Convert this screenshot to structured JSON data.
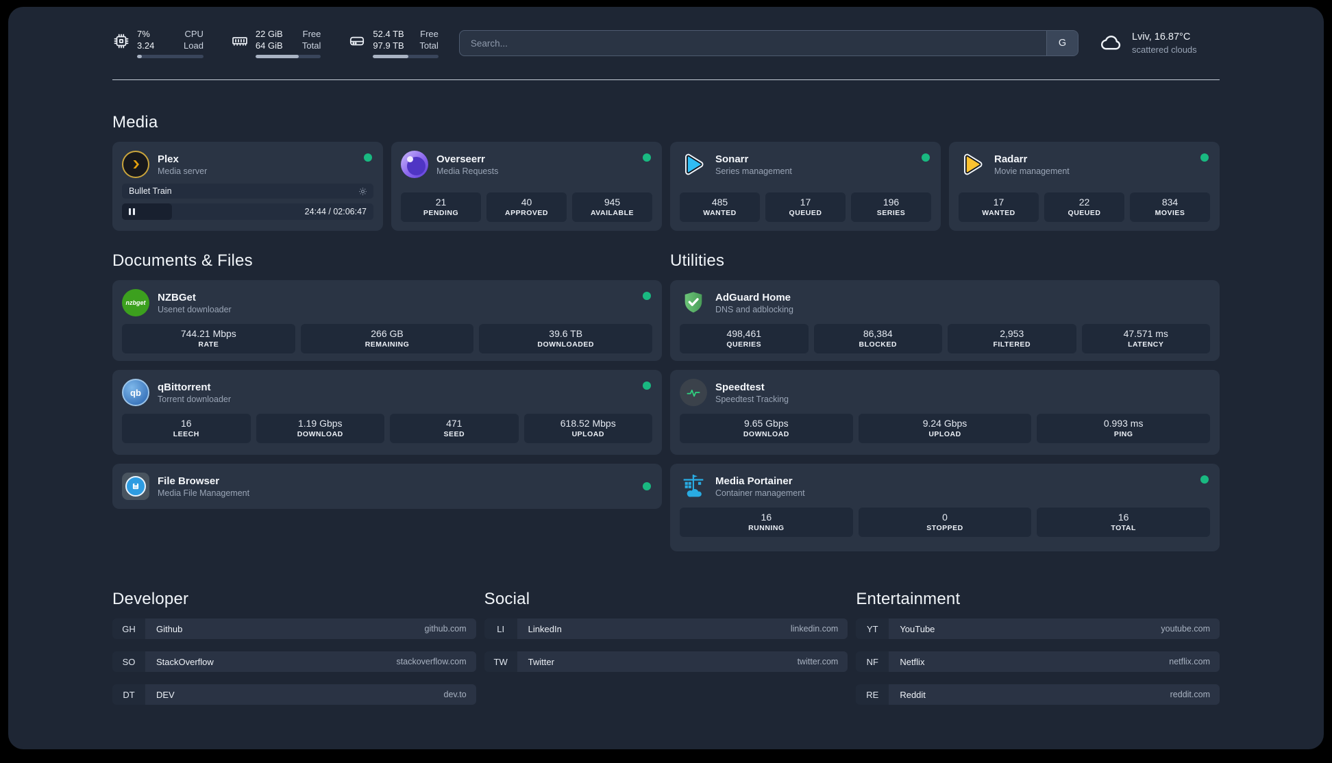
{
  "colors": {
    "status_green": "#19b981",
    "plex_amber": "#e5a00d",
    "sonarr_blue": "#30bdf4",
    "radarr_amber": "#fcc230",
    "nzbget_green": "#3ca01e",
    "qbittorrent_blue": "#3c77bd",
    "adguard_green": "#5bb36a",
    "speedtest_green": "#2fd380",
    "portainer_blue": "#29abe2",
    "overseerr_purple": "#8b67ee"
  },
  "icons": {
    "topbar": [
      "cpu-chip-icon",
      "memory-icon",
      "disk-icon",
      "cloud-icon"
    ],
    "player": [
      "gear-icon",
      "pause-icon"
    ],
    "status": "status-dot"
  },
  "topbar": {
    "cpu": {
      "values": [
        "7%",
        "3.24"
      ],
      "labels": [
        "CPU",
        "Load"
      ],
      "progress": 7
    },
    "memory": {
      "values": [
        "22 GiB",
        "64 GiB"
      ],
      "labels": [
        "Free",
        "Total"
      ],
      "progress": 66
    },
    "storage": {
      "values": [
        "52.4 TB",
        "97.9 TB"
      ],
      "labels": [
        "Free",
        "Total"
      ],
      "progress": 54
    },
    "search": {
      "placeholder": "Search...",
      "engine_button": "G"
    },
    "weather": {
      "location_temp": "Lviv, 16.87°C",
      "condition": "scattered clouds"
    }
  },
  "media": {
    "title": "Media",
    "plex": {
      "name": "Plex",
      "desc": "Media server",
      "now_playing": "Bullet Train",
      "progress_time": "24:44 / 02:06:47",
      "elapsed_percent": 20
    },
    "overseerr": {
      "name": "Overseerr",
      "desc": "Media Requests",
      "stats": [
        {
          "value": "21",
          "label": "PENDING"
        },
        {
          "value": "40",
          "label": "APPROVED"
        },
        {
          "value": "945",
          "label": "AVAILABLE"
        }
      ]
    },
    "sonarr": {
      "name": "Sonarr",
      "desc": "Series management",
      "stats": [
        {
          "value": "485",
          "label": "WANTED"
        },
        {
          "value": "17",
          "label": "QUEUED"
        },
        {
          "value": "196",
          "label": "SERIES"
        }
      ]
    },
    "radarr": {
      "name": "Radarr",
      "desc": "Movie management",
      "stats": [
        {
          "value": "17",
          "label": "WANTED"
        },
        {
          "value": "22",
          "label": "QUEUED"
        },
        {
          "value": "834",
          "label": "MOVIES"
        }
      ]
    }
  },
  "documents": {
    "title": "Documents & Files",
    "nzbget": {
      "name": "NZBGet",
      "desc": "Usenet downloader",
      "icon_text": "nzbget",
      "stats": [
        {
          "value": "744.21 Mbps",
          "label": "RATE"
        },
        {
          "value": "266 GB",
          "label": "REMAINING"
        },
        {
          "value": "39.6 TB",
          "label": "DOWNLOADED"
        }
      ]
    },
    "qbittorrent": {
      "name": "qBittorrent",
      "desc": "Torrent downloader",
      "icon_text": "qb",
      "stats": [
        {
          "value": "16",
          "label": "LEECH"
        },
        {
          "value": "1.19 Gbps",
          "label": "DOWNLOAD"
        },
        {
          "value": "471",
          "label": "SEED"
        },
        {
          "value": "618.52 Mbps",
          "label": "UPLOAD"
        }
      ]
    },
    "filebrowser": {
      "name": "File Browser",
      "desc": "Media File Management"
    }
  },
  "utilities": {
    "title": "Utilities",
    "adguard": {
      "name": "AdGuard Home",
      "desc": "DNS and adblocking",
      "stats": [
        {
          "value": "498,461",
          "label": "QUERIES"
        },
        {
          "value": "86,384",
          "label": "BLOCKED"
        },
        {
          "value": "2,953",
          "label": "FILTERED"
        },
        {
          "value": "47.571 ms",
          "label": "LATENCY"
        }
      ]
    },
    "speedtest": {
      "name": "Speedtest",
      "desc": "Speedtest Tracking",
      "stats": [
        {
          "value": "9.65 Gbps",
          "label": "DOWNLOAD"
        },
        {
          "value": "9.24 Gbps",
          "label": "UPLOAD"
        },
        {
          "value": "0.993 ms",
          "label": "PING"
        }
      ]
    },
    "portainer": {
      "name": "Media Portainer",
      "desc": "Container management",
      "stats": [
        {
          "value": "16",
          "label": "RUNNING"
        },
        {
          "value": "0",
          "label": "STOPPED"
        },
        {
          "value": "16",
          "label": "TOTAL"
        }
      ]
    }
  },
  "bookmarks": {
    "developer": {
      "title": "Developer",
      "items": [
        {
          "abbr": "GH",
          "name": "Github",
          "url": "github.com"
        },
        {
          "abbr": "SO",
          "name": "StackOverflow",
          "url": "stackoverflow.com"
        },
        {
          "abbr": "DT",
          "name": "DEV",
          "url": "dev.to"
        }
      ]
    },
    "social": {
      "title": "Social",
      "items": [
        {
          "abbr": "LI",
          "name": "LinkedIn",
          "url": "linkedin.com"
        },
        {
          "abbr": "TW",
          "name": "Twitter",
          "url": "twitter.com"
        }
      ]
    },
    "entertainment": {
      "title": "Entertainment",
      "items": [
        {
          "abbr": "YT",
          "name": "YouTube",
          "url": "youtube.com"
        },
        {
          "abbr": "NF",
          "name": "Netflix",
          "url": "netflix.com"
        },
        {
          "abbr": "RE",
          "name": "Reddit",
          "url": "reddit.com"
        }
      ]
    }
  }
}
